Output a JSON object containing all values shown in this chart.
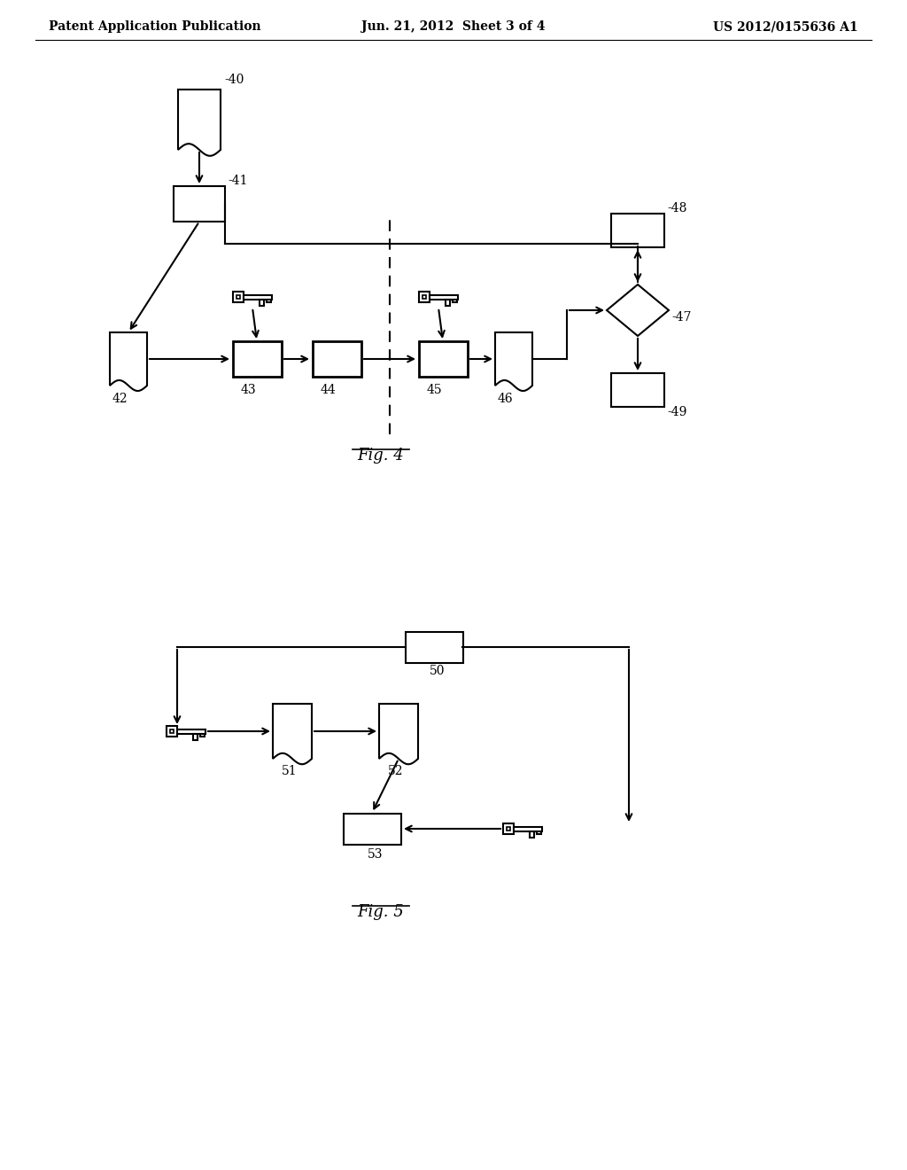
{
  "bg_color": "#ffffff",
  "header_left": "Patent Application Publication",
  "header_center": "Jun. 21, 2012  Sheet 3 of 4",
  "header_right": "US 2012/0155636 A1",
  "fig4_label": "Fig. 4",
  "fig5_label": "Fig. 5"
}
